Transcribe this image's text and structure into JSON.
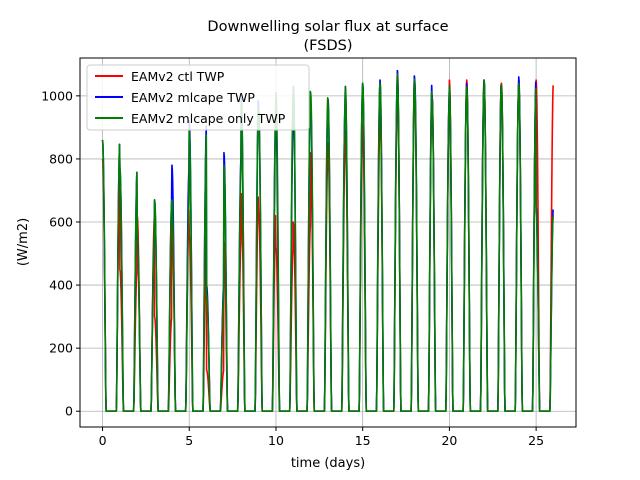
{
  "chart_data": {
    "type": "line",
    "title": "Downwelling solar flux at surface",
    "subtitle": "(FSDS)",
    "xlabel": "time (days)",
    "ylabel": "(W/m2)",
    "xlim": [
      -1.3,
      27.3
    ],
    "ylim": [
      -50,
      1120
    ],
    "xticks": [
      0,
      5,
      10,
      15,
      20,
      25
    ],
    "yticks": [
      0,
      200,
      400,
      600,
      800,
      1000
    ],
    "grid": true,
    "legend_position": "top-left",
    "days": 26,
    "series": [
      {
        "name": "EAMv2 ctl TWP",
        "color": "#ff0000",
        "daily_peaks": [
          800,
          450,
          620,
          300,
          650,
          560,
          130,
          540,
          690,
          630,
          520,
          600,
          820,
          850,
          890,
          910,
          980,
          1080,
          1000,
          1000,
          1050,
          1050,
          1050,
          1040,
          1050,
          1050
        ]
      },
      {
        "name": "EAMv2 mlcape TWP",
        "color": "#0000ff",
        "daily_peaks": [
          860,
          770,
          560,
          670,
          780,
          920,
          400,
          820,
          1000,
          960,
          920,
          1030,
          970,
          990,
          1030,
          1040,
          1050,
          1080,
          1050,
          1000,
          1030,
          1040,
          1050,
          1030,
          1060,
          650
        ]
      },
      {
        "name": "EAMv2 mlcape only TWP",
        "color": "#008000",
        "daily_peaks": [
          860,
          770,
          560,
          670,
          670,
          890,
          370,
          780,
          980,
          960,
          1010,
          1030,
          1010,
          980,
          1030,
          1040,
          1040,
          1070,
          1030,
          990,
          1030,
          1030,
          1050,
          1030,
          1040,
          630
        ]
      }
    ]
  }
}
